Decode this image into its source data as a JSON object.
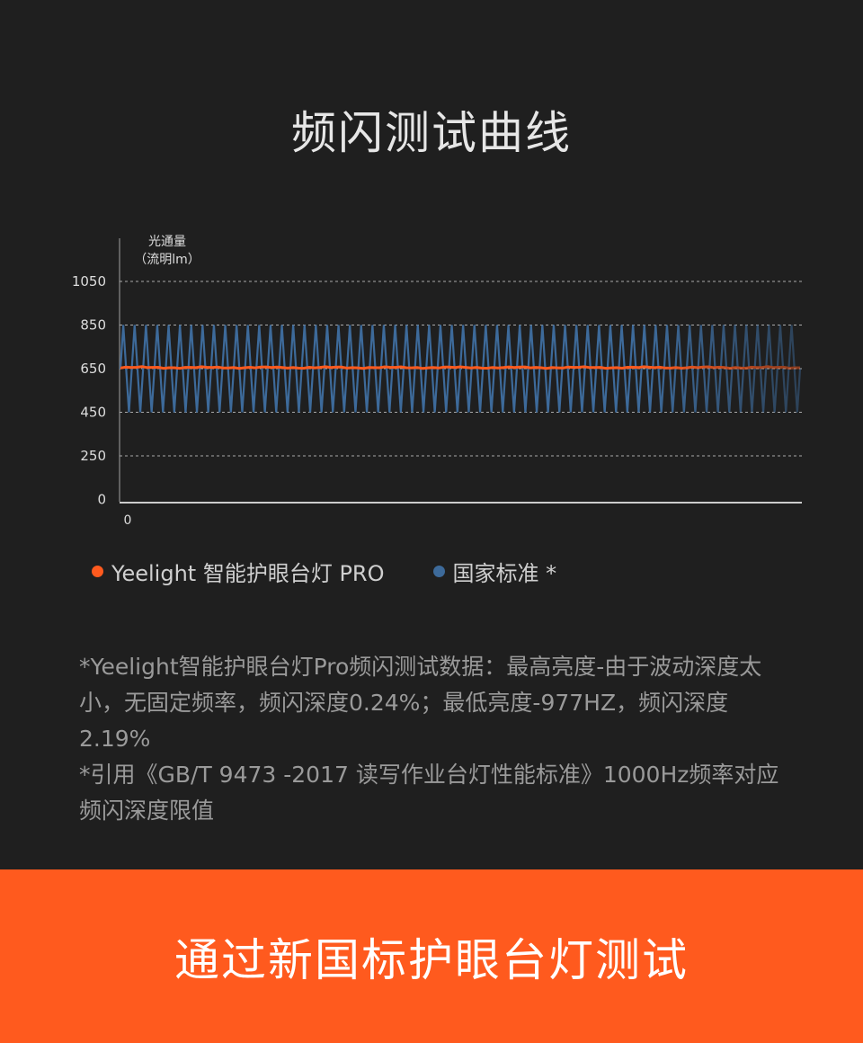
{
  "title": "频闪测试曲线",
  "chart_data": {
    "type": "line",
    "ylabel_line1": "光通量",
    "ylabel_line2": "（流明lm）",
    "y_ticks": [
      "1050",
      "850",
      "650",
      "450",
      "250",
      "0"
    ],
    "x_ticks": [
      "0"
    ],
    "grid": "dashed-horizontal",
    "legend_placement": "bottom-left",
    "series": [
      {
        "name": "Yeelight 智能护眼台灯 PRO",
        "color": "#ff5a1e",
        "shape": "nearly flat line",
        "level": 655,
        "min": 650,
        "max": 662
      },
      {
        "name": "国家标准 *",
        "color": "#3d6a9a",
        "shape": "periodic triangle wave",
        "min": 450,
        "max": 850,
        "cycles": 60
      }
    ]
  },
  "legend": [
    "Yeelight 智能护眼台灯 PRO",
    "国家标准 *"
  ],
  "notes": [
    "*Yeelight智能护眼台灯Pro频闪测试数据：最高亮度-由于波动深度太小，无固定频率，频闪深度0.24%；最低亮度-977HZ，频闪深度2.19%",
    "*引用《GB/T 9473 -2017 读写作业台灯性能标准》1000Hz频率对应频闪深度限值"
  ],
  "banner": {
    "text": "通过新国标护眼台灯测试",
    "color": "#ff5a1e"
  }
}
